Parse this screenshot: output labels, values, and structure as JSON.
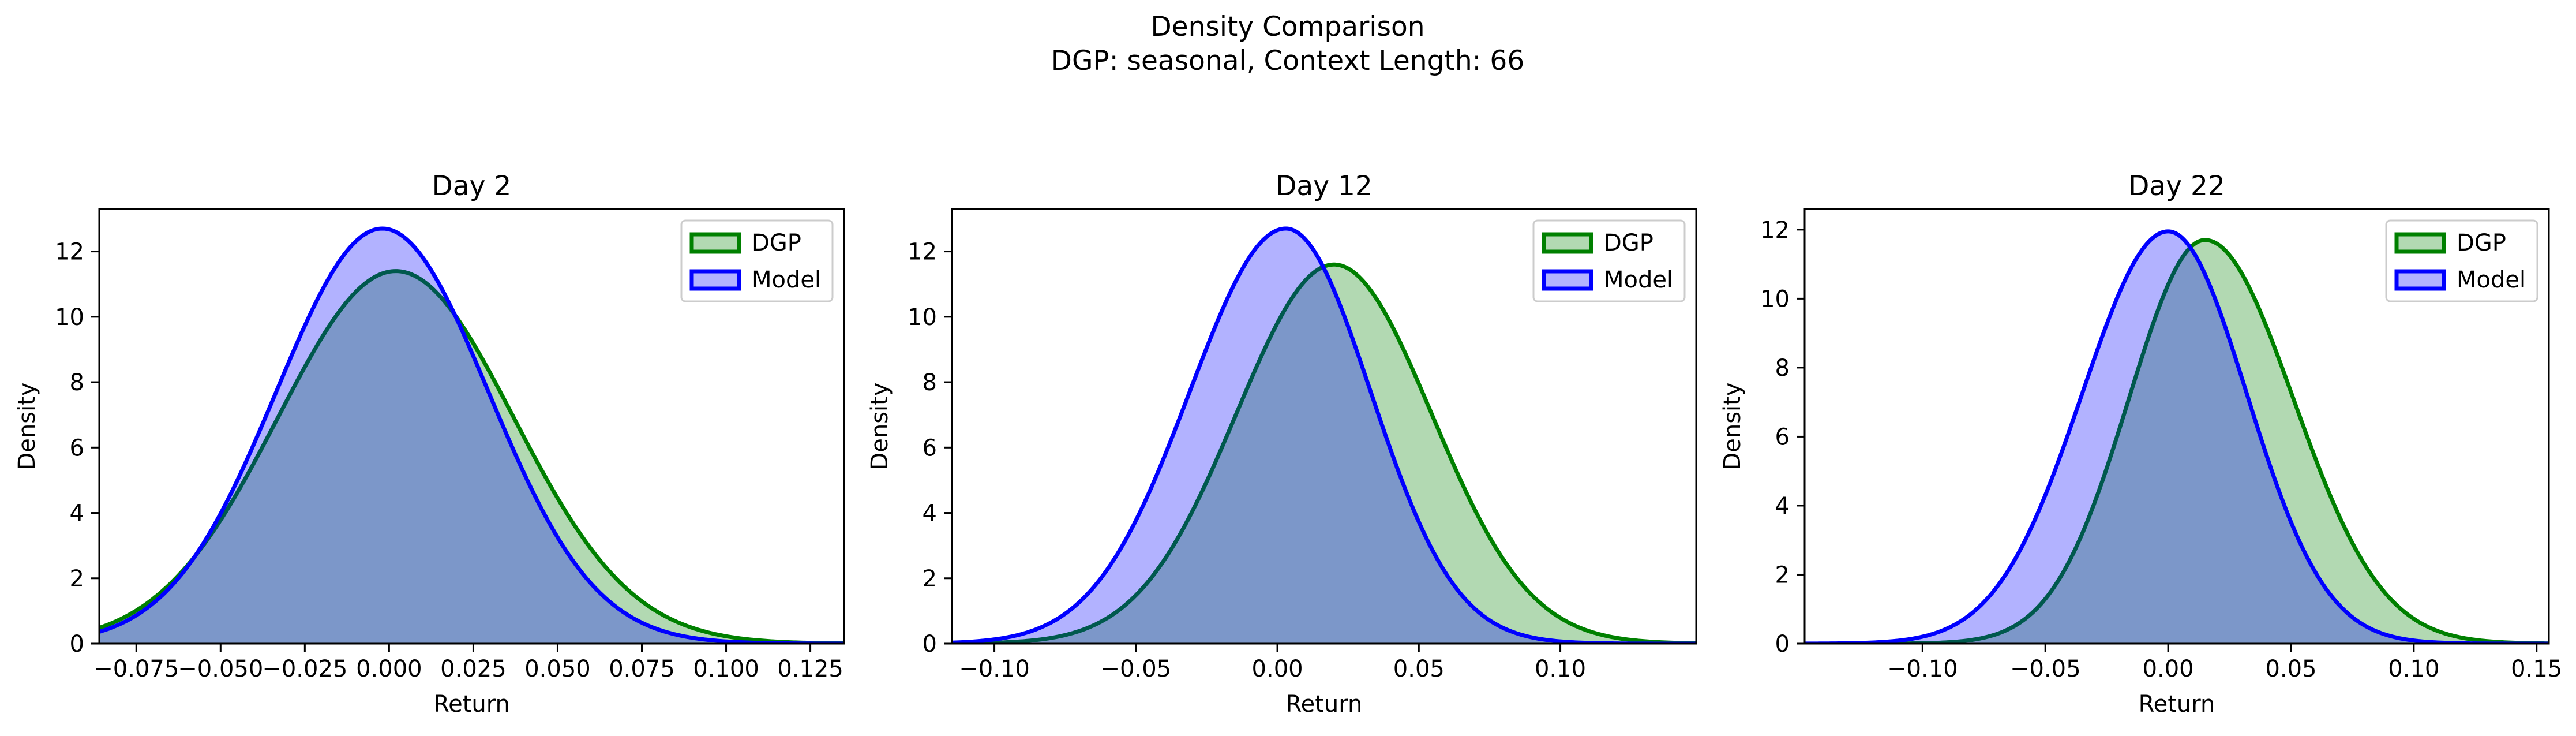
{
  "figure": {
    "title_line1": "Density Comparison",
    "title_line2": "DGP: seasonal, Context Length: 66"
  },
  "colors": {
    "dgp_line": "#008000",
    "dgp_fill": "#008000",
    "model_line": "#0000ff",
    "model_fill": "#0000ff",
    "background": "#ffffff",
    "axes": "#000000"
  },
  "chart_data": [
    {
      "type": "area",
      "title": "Day 2",
      "xlabel": "Return",
      "ylabel": "Density",
      "xlim": [
        -0.086,
        0.135
      ],
      "ylim": [
        0,
        13.3
      ],
      "xticks": [
        -0.075,
        -0.05,
        -0.025,
        0.0,
        0.025,
        0.05,
        0.075,
        0.1,
        0.125
      ],
      "xtick_labels": [
        "−0.075",
        "−0.050",
        "−0.025",
        "0.000",
        "0.025",
        "0.050",
        "0.075",
        "0.100",
        "0.125"
      ],
      "yticks": [
        0,
        2,
        4,
        6,
        8,
        10,
        12
      ],
      "ytick_labels": [
        "0",
        "2",
        "4",
        "6",
        "8",
        "10",
        "12"
      ],
      "legend": "top-right",
      "series": [
        {
          "name": "DGP",
          "peak_x": 0.002,
          "peak_density": 11.4,
          "std_left": 0.035,
          "std_right": 0.035
        },
        {
          "name": "Model",
          "peak_x": -0.002,
          "peak_density": 12.7,
          "std_left": 0.0315,
          "std_right": 0.0315
        }
      ]
    },
    {
      "type": "area",
      "title": "Day 12",
      "xlabel": "Return",
      "ylabel": "Density",
      "xlim": [
        -0.115,
        0.148
      ],
      "ylim": [
        0,
        13.3
      ],
      "xticks": [
        -0.1,
        -0.05,
        0.0,
        0.05,
        0.1
      ],
      "xtick_labels": [
        "−0.10",
        "−0.05",
        "0.00",
        "0.05",
        "0.10"
      ],
      "yticks": [
        0,
        2,
        4,
        6,
        8,
        10,
        12
      ],
      "ytick_labels": [
        "0",
        "2",
        "4",
        "6",
        "8",
        "10",
        "12"
      ],
      "legend": "top-right",
      "series": [
        {
          "name": "DGP",
          "peak_x": 0.02,
          "peak_density": 11.6,
          "std_left": 0.0345,
          "std_right": 0.0345
        },
        {
          "name": "Model",
          "peak_x": 0.003,
          "peak_density": 12.7,
          "std_left": 0.034,
          "std_right": 0.03
        }
      ]
    },
    {
      "type": "area",
      "title": "Day 22",
      "xlabel": "Return",
      "ylabel": "Density",
      "xlim": [
        -0.148,
        0.155
      ],
      "ylim": [
        0,
        12.6
      ],
      "xticks": [
        -0.1,
        -0.05,
        0.0,
        0.05,
        0.1,
        0.15
      ],
      "xtick_labels": [
        "−0.10",
        "−0.05",
        "0.00",
        "0.05",
        "0.10",
        "0.15"
      ],
      "yticks": [
        0,
        2,
        4,
        6,
        8,
        10,
        12
      ],
      "ytick_labels": [
        "0",
        "2",
        "4",
        "6",
        "8",
        "10",
        "12"
      ],
      "legend": "top-right",
      "series": [
        {
          "name": "DGP",
          "peak_x": 0.015,
          "peak_density": 11.7,
          "std_left": 0.031,
          "std_right": 0.036
        },
        {
          "name": "Model",
          "peak_x": 0.0,
          "peak_density": 11.95,
          "std_left": 0.035,
          "std_right": 0.032
        }
      ]
    }
  ]
}
